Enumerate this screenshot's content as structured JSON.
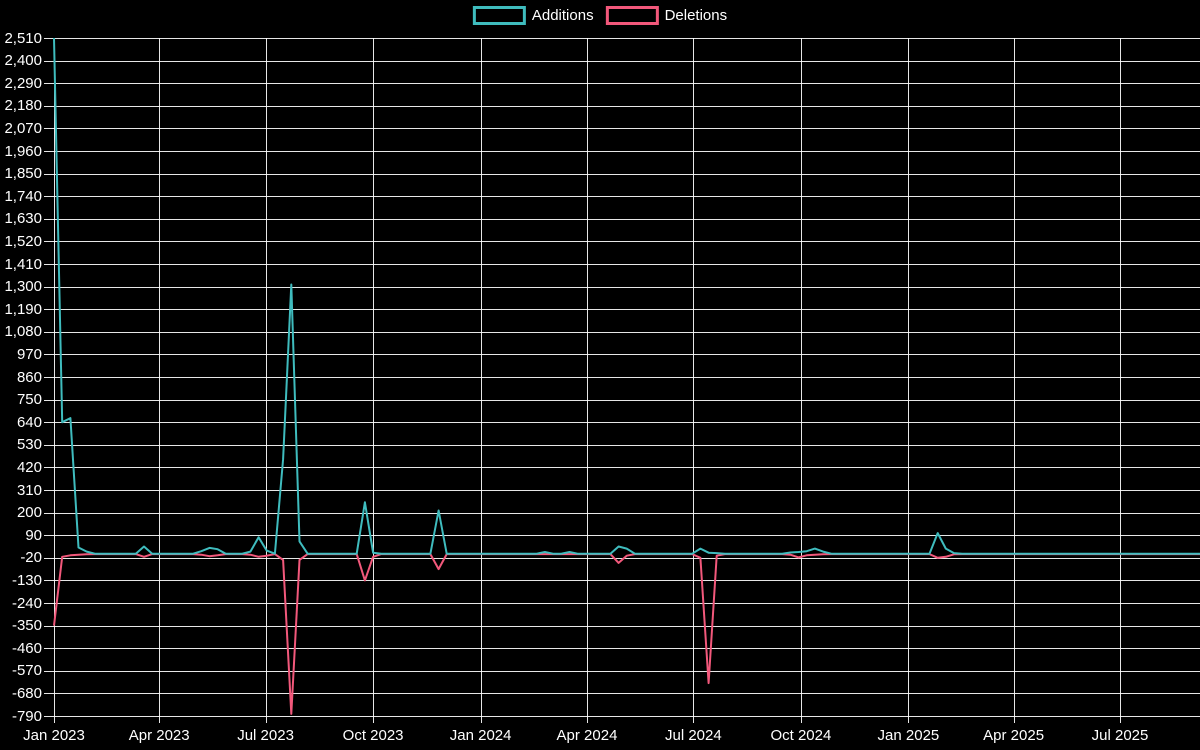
{
  "chart_data": {
    "type": "line",
    "title": "",
    "background_color": "#000000",
    "text_color": "#ffffff",
    "grid_color": "#ffffff",
    "legend": {
      "position": "top-center",
      "items": [
        {
          "label": "Additions",
          "color": "#3fbcbe"
        },
        {
          "label": "Deletions",
          "color": "#f2587b"
        }
      ]
    },
    "y_axis": {
      "min": -790,
      "max": 2510,
      "step": 110,
      "grid": true,
      "tick_labels": [
        "2,510",
        "2,400",
        "2,290",
        "2,180",
        "2,070",
        "1,960",
        "1,850",
        "1,740",
        "1,630",
        "1,520",
        "1,410",
        "1,300",
        "1,190",
        "1,080",
        "970",
        "860",
        "750",
        "640",
        "530",
        "420",
        "310",
        "200",
        "90",
        "-20",
        "-130",
        "-240",
        "-350",
        "-460",
        "-570",
        "-680",
        "-790"
      ]
    },
    "x_axis": {
      "grid": true,
      "ticks": [
        {
          "label": "Jan 2023",
          "date": "2023-01-01"
        },
        {
          "label": "Apr 2023",
          "date": "2023-04-01"
        },
        {
          "label": "Jul 2023",
          "date": "2023-07-01"
        },
        {
          "label": "Oct 2023",
          "date": "2023-10-01"
        },
        {
          "label": "Jan 2024",
          "date": "2024-01-01"
        },
        {
          "label": "Apr 2024",
          "date": "2024-04-01"
        },
        {
          "label": "Jul 2024",
          "date": "2024-07-01"
        },
        {
          "label": "Oct 2024",
          "date": "2024-10-01"
        },
        {
          "label": "Jan 2025",
          "date": "2025-01-01"
        },
        {
          "label": "Apr 2025",
          "date": "2025-04-01"
        },
        {
          "label": "Jul 2025",
          "date": "2025-07-01"
        }
      ]
    },
    "series": {
      "interval": "weekly",
      "start_date": "2023-01-01",
      "end_date": "2025-09-28",
      "baseline": {
        "additions": 0,
        "deletions": 2
      },
      "events": [
        {
          "date": "2023-01-01",
          "additions": 2510,
          "deletions": 350
        },
        {
          "date": "2023-01-08",
          "additions": 640,
          "deletions": 15
        },
        {
          "date": "2023-01-15",
          "additions": 660,
          "deletions": 8
        },
        {
          "date": "2023-01-22",
          "additions": 30,
          "deletions": 5
        },
        {
          "date": "2023-01-29",
          "additions": 10,
          "deletions": 3
        },
        {
          "date": "2023-03-19",
          "additions": 35,
          "deletions": 15
        },
        {
          "date": "2023-05-07",
          "additions": 12,
          "deletions": 5
        },
        {
          "date": "2023-05-14",
          "additions": 28,
          "deletions": 12
        },
        {
          "date": "2023-05-21",
          "additions": 22,
          "deletions": 8
        },
        {
          "date": "2023-06-18",
          "additions": 10,
          "deletions": 5
        },
        {
          "date": "2023-06-25",
          "additions": 80,
          "deletions": 15
        },
        {
          "date": "2023-07-02",
          "additions": 15,
          "deletions": 10
        },
        {
          "date": "2023-07-16",
          "additions": 460,
          "deletions": 30
        },
        {
          "date": "2023-07-23",
          "additions": 1310,
          "deletions": 780
        },
        {
          "date": "2023-07-30",
          "additions": 60,
          "deletions": 30
        },
        {
          "date": "2023-09-24",
          "additions": 250,
          "deletions": 130
        },
        {
          "date": "2023-10-01",
          "additions": 5,
          "deletions": 15
        },
        {
          "date": "2023-11-26",
          "additions": 210,
          "deletions": 75
        },
        {
          "date": "2024-02-25",
          "additions": 8,
          "deletions": 2
        },
        {
          "date": "2024-03-17",
          "additions": 8,
          "deletions": 2
        },
        {
          "date": "2024-04-28",
          "additions": 35,
          "deletions": 45
        },
        {
          "date": "2024-05-05",
          "additions": 25,
          "deletions": 10
        },
        {
          "date": "2024-07-07",
          "additions": 25,
          "deletions": 20
        },
        {
          "date": "2024-07-14",
          "additions": 5,
          "deletions": 630
        },
        {
          "date": "2024-07-21",
          "additions": 3,
          "deletions": 10
        },
        {
          "date": "2024-09-22",
          "additions": 6,
          "deletions": 5
        },
        {
          "date": "2024-09-29",
          "additions": 8,
          "deletions": 18
        },
        {
          "date": "2024-10-06",
          "additions": 12,
          "deletions": 8
        },
        {
          "date": "2024-10-13",
          "additions": 25,
          "deletions": 5
        },
        {
          "date": "2024-10-20",
          "additions": 10,
          "deletions": 3
        },
        {
          "date": "2025-01-26",
          "additions": 100,
          "deletions": 20
        },
        {
          "date": "2025-02-02",
          "additions": 25,
          "deletions": 15
        },
        {
          "date": "2025-02-09",
          "additions": 3,
          "deletions": 3
        }
      ]
    }
  }
}
